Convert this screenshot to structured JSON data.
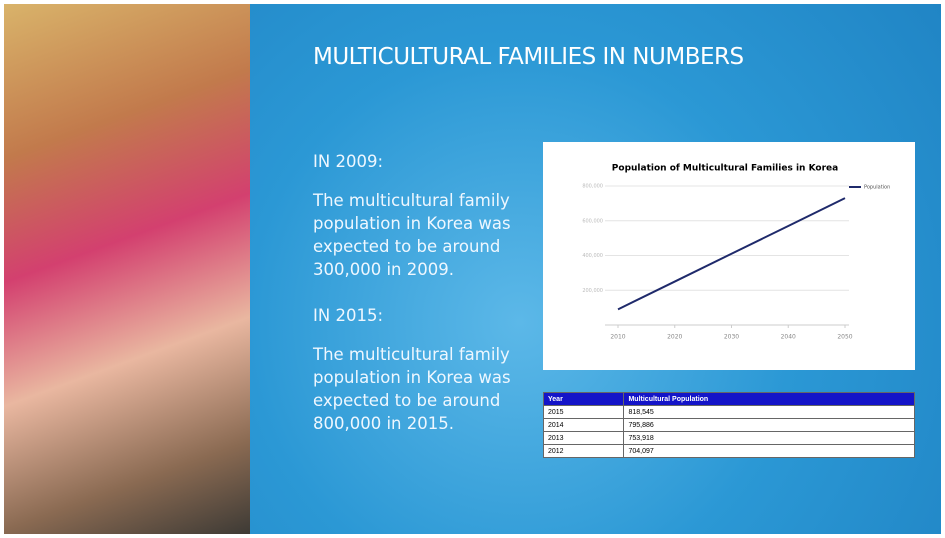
{
  "slide": {
    "title": "MULTICULTURAL FAMILIES IN NUMBERS",
    "sections": [
      {
        "heading": "IN 2009:",
        "text": "The multicultural family population in Korea was expected to be around 300,000 in 2009."
      },
      {
        "heading": "IN 2015:",
        "text": "The multicultural family population in Korea was expected to be around 800,000 in 2015."
      }
    ]
  },
  "chart_data": {
    "type": "line",
    "title": "Population of Multicultural Families in Korea",
    "x": [
      2010,
      2020,
      2030,
      2040,
      2050
    ],
    "series": [
      {
        "name": "Population",
        "color": "#1f2a6b",
        "values": [
          90000,
          250000,
          410000,
          570000,
          730000
        ]
      }
    ],
    "xlim": [
      2010,
      2050
    ],
    "xticks": [
      2010,
      2020,
      2030,
      2040,
      2050
    ],
    "ylim": [
      0,
      800000
    ],
    "yticks": [
      {
        "value": 200000,
        "label": "200,000"
      },
      {
        "value": 400000,
        "label": "400,000"
      },
      {
        "value": 600000,
        "label": "600,000"
      },
      {
        "value": 800000,
        "label": "800,000"
      }
    ],
    "grid": true
  },
  "table": {
    "header": [
      "Year",
      "Multicultural Population"
    ],
    "rows": [
      [
        "2015",
        "818,545"
      ],
      [
        "2014",
        "795,886"
      ],
      [
        "2013",
        "753,918"
      ],
      [
        "2012",
        "704,097"
      ]
    ]
  }
}
